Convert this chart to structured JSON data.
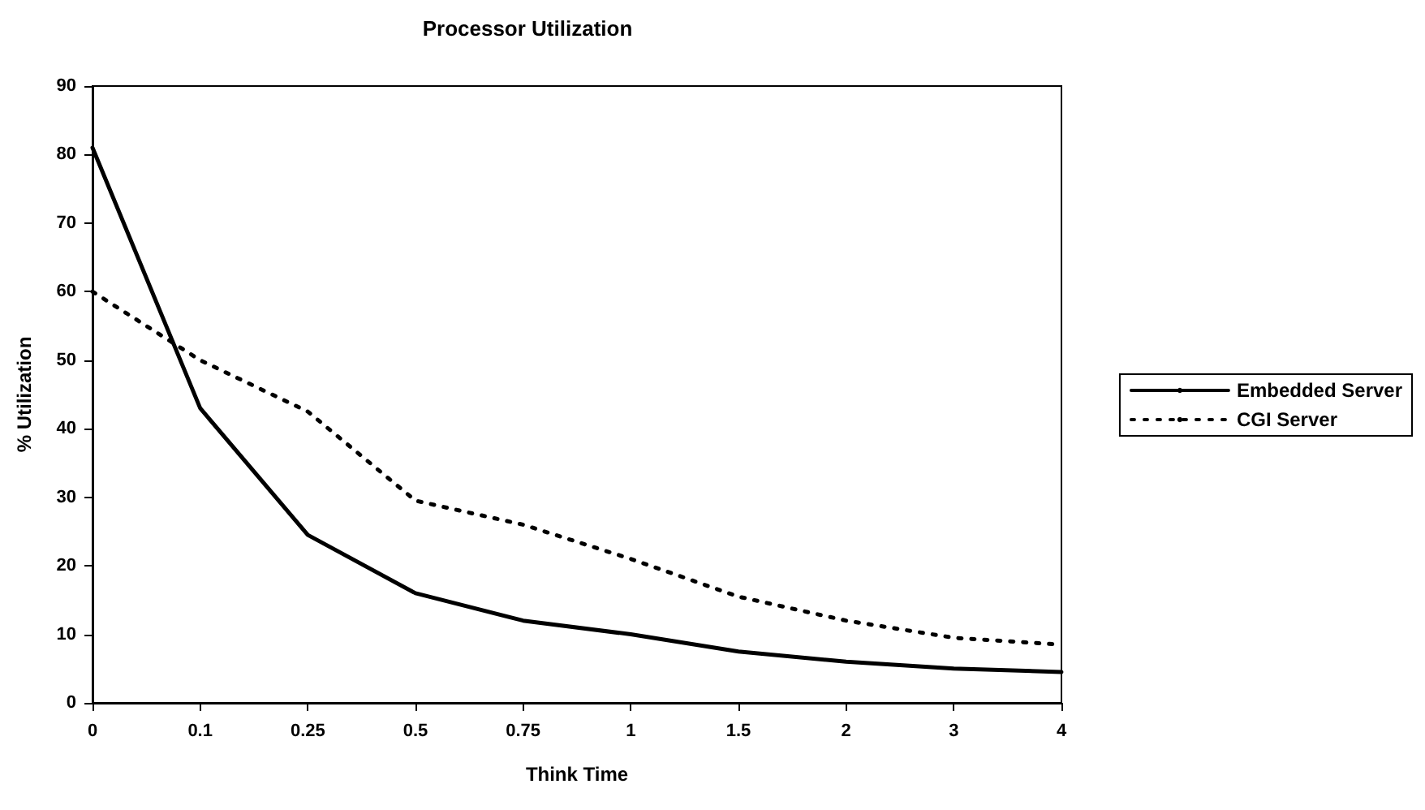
{
  "chart_data": {
    "type": "line",
    "title": "Processor Utilization",
    "xlabel": "Think Time",
    "ylabel": "% Utilization",
    "categories": [
      "0",
      "0.1",
      "0.25",
      "0.5",
      "0.75",
      "1",
      "1.5",
      "2",
      "3",
      "4"
    ],
    "series": [
      {
        "name": "Embedded Server",
        "color": "#000000",
        "line_style": "solid",
        "values": [
          81,
          43,
          24.5,
          16,
          12,
          10,
          7.5,
          6,
          5,
          4.5
        ]
      },
      {
        "name": "CGI Server",
        "color": "#000000",
        "line_style": "dotted",
        "values": [
          60,
          50,
          42.5,
          29.5,
          26,
          21,
          15.5,
          12,
          9.5,
          8.5
        ]
      }
    ],
    "ylim": [
      0,
      90
    ],
    "yticks": [
      0,
      10,
      20,
      30,
      40,
      50,
      60,
      70,
      80,
      90
    ],
    "grid": false,
    "legend": "right",
    "marker": "none"
  }
}
